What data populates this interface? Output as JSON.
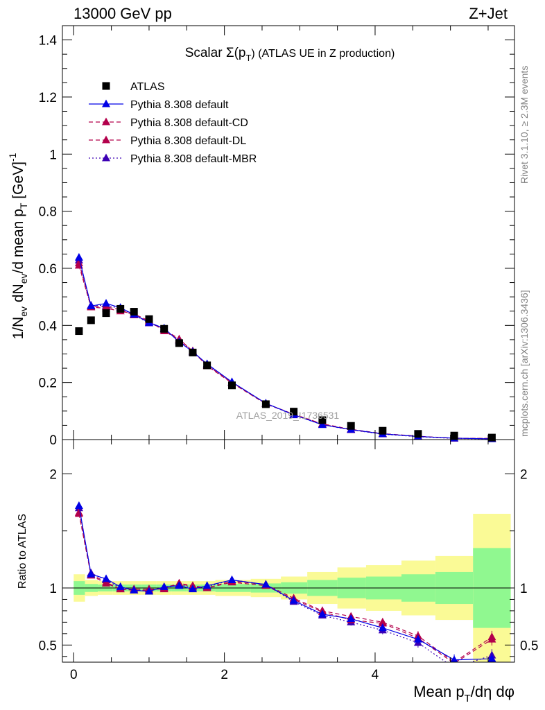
{
  "header": {
    "left": "13000 GeV pp",
    "right": "Z+Jet"
  },
  "side_labels": {
    "rivet": "Rivet 3.1.10, ≥ 2.3M events",
    "mcplots": "mcplots.cern.ch [arXiv:1306.3436]"
  },
  "watermark": "ATLAS_2019_I1736531",
  "chart_data": [
    {
      "type": "scatter",
      "panel": "main",
      "title": "Scalar Σ(p_T) (ATLAS UE in Z production)",
      "title_parts": {
        "pre": "Scalar Σ(p",
        "sub": "T",
        "post": ") (ATLAS UE in Z production)"
      },
      "ylabel": "1/N_ev dN_ev/d mean p_T [GeV]^-1",
      "ylabel_parts": [
        "1/N",
        "ev",
        " dN",
        "ev",
        "/d mean p",
        "T",
        " [GeV]",
        "-1"
      ],
      "xlim": [
        -0.15,
        5.85
      ],
      "ylim": [
        0,
        1.45
      ],
      "yticks": [
        0,
        0.2,
        0.4,
        0.6,
        0.8,
        1,
        1.2,
        1.4
      ],
      "ytick_labels": [
        "0",
        "0.2",
        "0.4",
        "0.6",
        "0.8",
        "1",
        "1.2",
        "1.4"
      ],
      "legend_position": "top-left",
      "x": [
        0.07,
        0.23,
        0.43,
        0.62,
        0.8,
        1.0,
        1.2,
        1.4,
        1.58,
        1.77,
        2.1,
        2.55,
        2.92,
        3.3,
        3.68,
        4.1,
        4.57,
        5.05,
        5.55
      ],
      "series": [
        {
          "name": "ATLAS",
          "style": "data",
          "color": "#000000",
          "values": [
            0.38,
            0.418,
            0.443,
            0.458,
            0.448,
            0.422,
            0.388,
            0.338,
            0.305,
            0.26,
            0.19,
            0.124,
            0.098,
            0.068,
            0.048,
            0.031,
            0.02,
            0.014,
            0.007
          ]
        },
        {
          "name": "Pythia 8.308 default",
          "style": "solid",
          "color": "#0000e6",
          "values": [
            0.638,
            0.468,
            0.477,
            0.462,
            0.438,
            0.41,
            0.39,
            0.342,
            0.308,
            0.265,
            0.202,
            0.127,
            0.087,
            0.052,
            0.035,
            0.02,
            0.011,
            0.005,
            0.0025
          ]
        },
        {
          "name": "Pythia 8.308 default-CD",
          "style": "dashed",
          "color": "#b3004b",
          "values": [
            0.618,
            0.466,
            0.465,
            0.455,
            0.436,
            0.413,
            0.386,
            0.352,
            0.31,
            0.26,
            0.2,
            0.126,
            0.089,
            0.055,
            0.036,
            0.021,
            0.012,
            0.0045,
            0.004
          ]
        },
        {
          "name": "Pythia 8.308 default-DL",
          "style": "dashed",
          "color": "#b3004b",
          "values": [
            0.61,
            0.464,
            0.46,
            0.45,
            0.44,
            0.416,
            0.38,
            0.35,
            0.31,
            0.258,
            0.198,
            0.125,
            0.088,
            0.054,
            0.034,
            0.02,
            0.011,
            0.005,
            0.004
          ]
        },
        {
          "name": "Pythia 8.308 default-MBR",
          "style": "dotted",
          "color": "#3c00b4",
          "values": [
            0.628,
            0.47,
            0.47,
            0.46,
            0.437,
            0.408,
            0.388,
            0.346,
            0.306,
            0.262,
            0.201,
            0.127,
            0.086,
            0.052,
            0.034,
            0.019,
            0.01,
            0.004,
            0.002
          ]
        }
      ]
    },
    {
      "type": "scatter",
      "panel": "ratio",
      "ylabel": "Ratio to ATLAS",
      "xlabel": "Mean p_T/dη dφ",
      "xlabel_parts": {
        "pre": "Mean p",
        "sub": "T",
        "post": "/dη dφ"
      },
      "xlim": [
        -0.15,
        5.85
      ],
      "ylim": [
        0.35,
        2.3
      ],
      "xticks": [
        0,
        2,
        4
      ],
      "xtick_labels": [
        "0",
        "2",
        "4"
      ],
      "yticks": [
        0.5,
        1,
        2
      ],
      "ytick_labels": [
        "0.5",
        "1",
        "2"
      ],
      "bands": {
        "edges": [
          0,
          0.15,
          0.32,
          0.52,
          0.72,
          0.9,
          1.1,
          1.3,
          1.5,
          1.68,
          1.88,
          2.35,
          2.75,
          3.1,
          3.5,
          3.88,
          4.35,
          4.8,
          5.3,
          5.8
        ],
        "green_half": [
          0.06,
          0.035,
          0.03,
          0.03,
          0.03,
          0.03,
          0.03,
          0.03,
          0.03,
          0.03,
          0.035,
          0.04,
          0.05,
          0.07,
          0.09,
          0.1,
          0.12,
          0.14,
          0.35
        ],
        "yellow_half": [
          0.12,
          0.07,
          0.06,
          0.06,
          0.06,
          0.06,
          0.06,
          0.06,
          0.06,
          0.06,
          0.07,
          0.08,
          0.1,
          0.14,
          0.18,
          0.2,
          0.24,
          0.28,
          0.65
        ],
        "green_color": "#90f890",
        "yellow_color": "#fafa96"
      },
      "series": [
        {
          "name": "Pythia 8.308 default",
          "style": "solid",
          "color": "#0000e6",
          "values": [
            1.72,
            1.12,
            1.08,
            1.01,
            0.98,
            0.97,
            1.01,
            1.02,
            0.99,
            1.02,
            1.07,
            1.03,
            0.89,
            0.77,
            0.73,
            0.65,
            0.55,
            0.37,
            0.38
          ]
        },
        {
          "name": "Pythia 8.308 default-CD",
          "style": "dashed",
          "color": "#b3004b",
          "values": [
            1.66,
            1.12,
            1.05,
            0.99,
            0.98,
            0.98,
            1.0,
            1.04,
            1.02,
            1.0,
            1.06,
            1.03,
            0.91,
            0.8,
            0.75,
            0.7,
            0.58,
            0.35,
            0.57
          ]
        },
        {
          "name": "Pythia 8.308 default-DL",
          "style": "dashed",
          "color": "#b3004b",
          "values": [
            1.65,
            1.11,
            1.04,
            0.99,
            0.99,
            0.99,
            0.99,
            1.04,
            1.01,
            1.0,
            1.05,
            1.02,
            0.9,
            0.79,
            0.72,
            0.69,
            0.56,
            0.34,
            0.55
          ]
        },
        {
          "name": "Pythia 8.308 default-MBR",
          "style": "dotted",
          "color": "#3c00b4",
          "values": [
            1.7,
            1.13,
            1.07,
            1.0,
            0.98,
            0.98,
            1.0,
            1.03,
            1.0,
            1.01,
            1.07,
            1.03,
            0.88,
            0.76,
            0.7,
            0.63,
            0.52,
            0.3,
            0.41
          ]
        }
      ]
    }
  ]
}
